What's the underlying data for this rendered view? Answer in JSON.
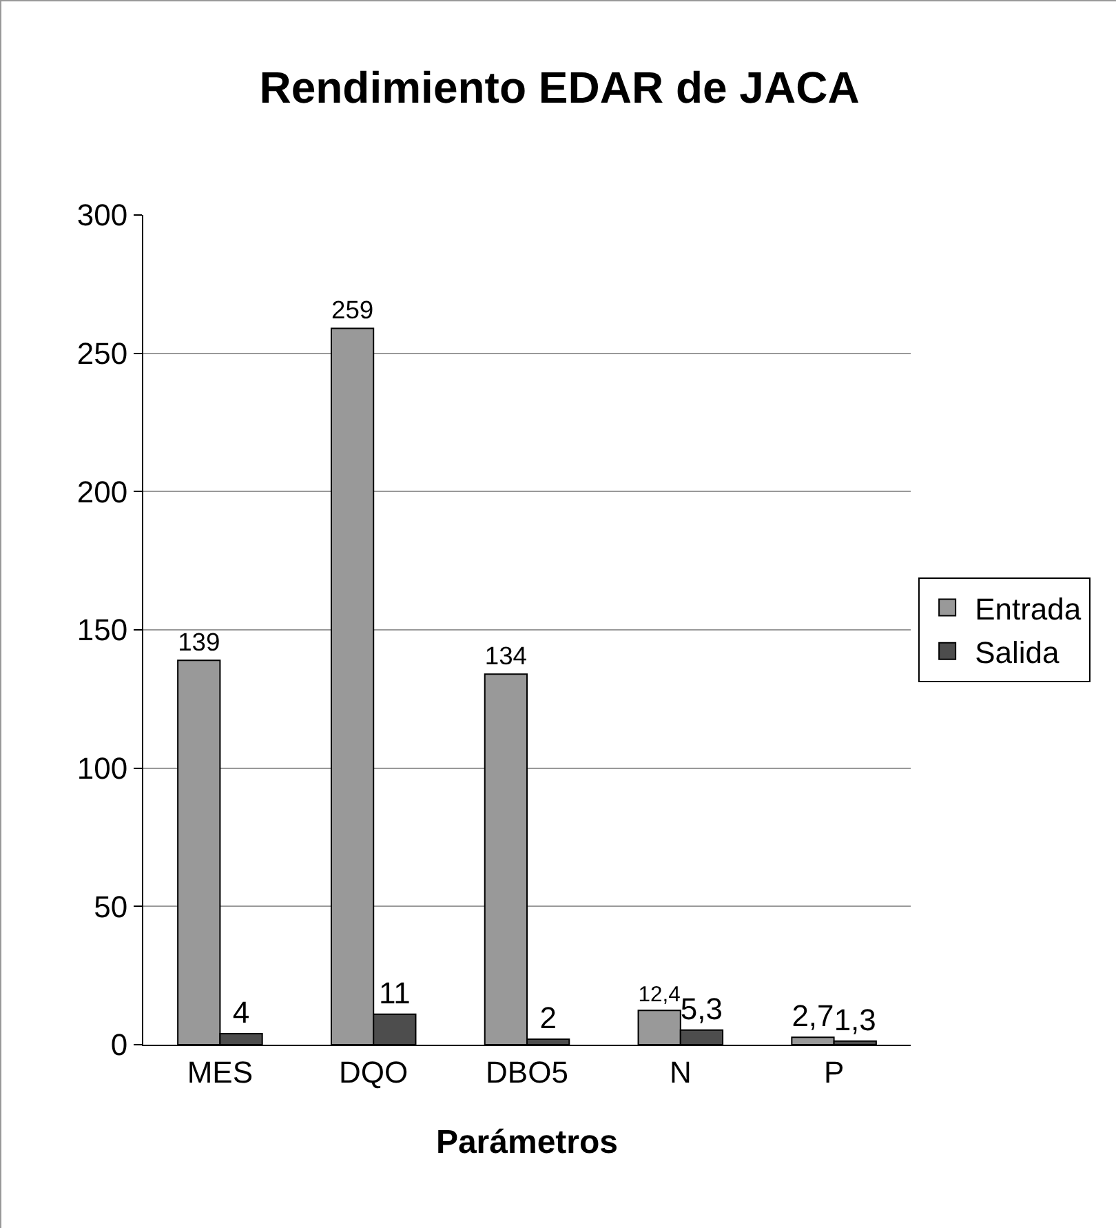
{
  "chart_data": {
    "type": "bar",
    "title": "Rendimiento EDAR de JACA",
    "xlabel": "Parámetros",
    "categories": [
      "MES",
      "DQO",
      "DBO5",
      "N",
      "P"
    ],
    "series": [
      {
        "name": "Entrada",
        "color": "#999999",
        "values": [
          139,
          259,
          134,
          12.4,
          2.7
        ],
        "value_labels": [
          "139",
          "259",
          "134",
          "12,4",
          "2,7"
        ]
      },
      {
        "name": "Salida",
        "color": "#4d4d4d",
        "values": [
          4,
          11,
          2,
          5.3,
          1.3
        ],
        "value_labels": [
          "4",
          "11",
          "2",
          "5,3",
          "1,3"
        ]
      }
    ],
    "ylim": [
      0,
      300
    ],
    "yticks": [
      0,
      50,
      100,
      150,
      200,
      250,
      300
    ],
    "grid": "y",
    "legend": "right"
  }
}
